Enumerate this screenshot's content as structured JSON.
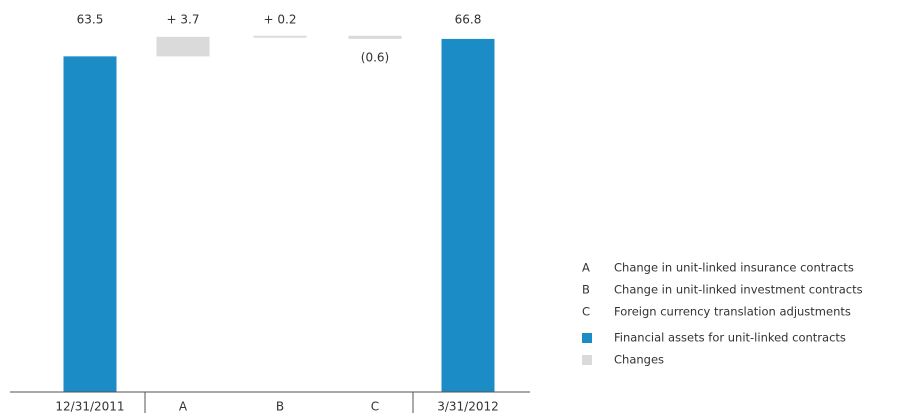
{
  "chart_data": {
    "type": "waterfall",
    "categories": [
      "12/31/2011",
      "A",
      "B",
      "C",
      "3/31/2012"
    ],
    "values": [
      63.5,
      3.7,
      0.2,
      -0.6,
      66.8
    ],
    "value_labels": [
      "63.5",
      "+ 3.7",
      "+ 0.2",
      "(0.6)",
      "66.8"
    ],
    "kinds": [
      "total",
      "change",
      "change",
      "change",
      "total"
    ],
    "series": [
      {
        "name": "Financial assets for unit-linked contracts",
        "color": "#1b8cc6"
      },
      {
        "name": "Changes",
        "color": "#dadada"
      }
    ],
    "notes": [
      {
        "key": "A",
        "label": "Change in unit-linked insurance contracts"
      },
      {
        "key": "B",
        "label": "Change in unit-linked investment contracts"
      },
      {
        "key": "C",
        "label": "Foreign currency translation adjustments"
      }
    ],
    "ylim": [
      0,
      70
    ]
  }
}
